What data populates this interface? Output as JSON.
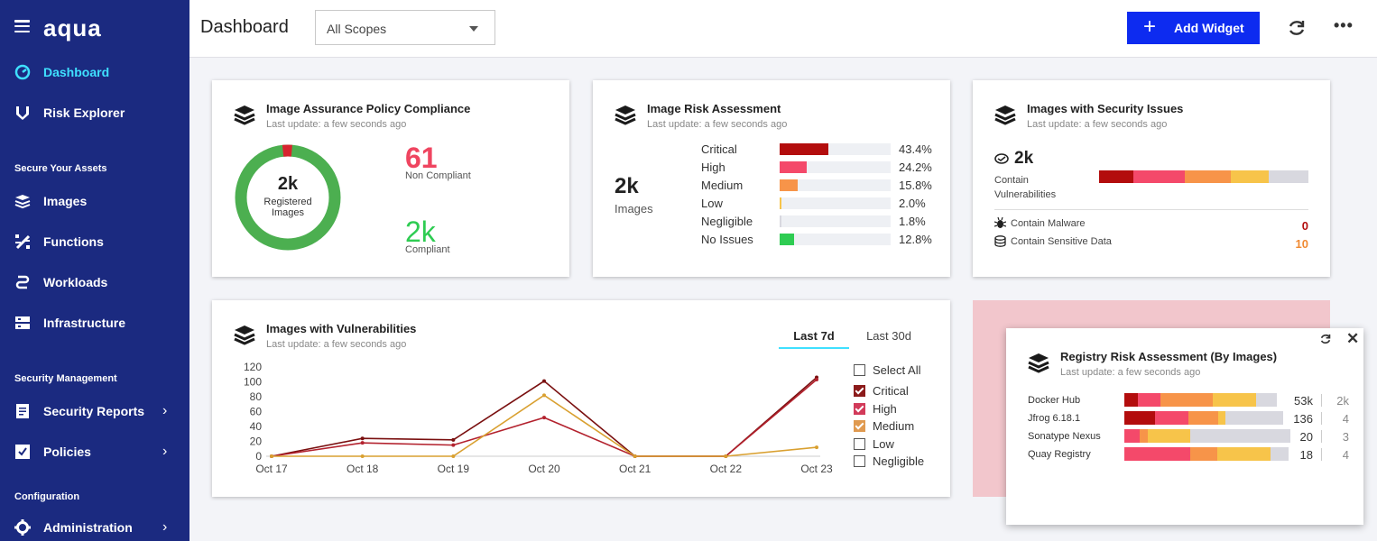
{
  "sidebar": {
    "logo": "aqua",
    "items": [
      {
        "label": "Dashboard",
        "icon": "gauge-icon",
        "active": true
      },
      {
        "label": "Risk Explorer",
        "icon": "risk-icon"
      },
      {
        "label": "Images",
        "icon": "stack-icon"
      },
      {
        "label": "Functions",
        "icon": "function-icon"
      },
      {
        "label": "Workloads",
        "icon": "workloads-icon"
      },
      {
        "label": "Infrastructure",
        "icon": "server-icon"
      },
      {
        "label": "Security Reports",
        "icon": "report-icon"
      },
      {
        "label": "Policies",
        "icon": "policy-icon"
      },
      {
        "label": "Administration",
        "icon": "gear-icon"
      }
    ],
    "sections": [
      "Secure Your Assets",
      "Security Management",
      "Configuration"
    ]
  },
  "header": {
    "title": "Dashboard",
    "scope_select": "All Scopes",
    "add_widget_label": "Add Widget"
  },
  "widgets": {
    "last_update": "Last update: a few seconds ago",
    "compliance": {
      "title": "Image Assurance Policy Compliance",
      "center_value": "2k",
      "center_label_1": "Registered",
      "center_label_2": "Images",
      "non_compliant_value": "61",
      "non_compliant_label": "Non Compliant",
      "compliant_value": "2k",
      "compliant_label": "Compliant",
      "non_compliant_fraction": 0.03
    },
    "risk": {
      "title": "Image Risk Assessment",
      "total_value": "2k",
      "total_label": "Images",
      "rows": [
        {
          "name": "Critical",
          "pct": "43.4%",
          "value": 43.4,
          "color": "#b30d0d"
        },
        {
          "name": "High",
          "pct": "24.2%",
          "value": 24.2,
          "color": "#f4496a"
        },
        {
          "name": "Medium",
          "pct": "15.8%",
          "value": 15.8,
          "color": "#f79449"
        },
        {
          "name": "Low",
          "pct": "2.0%",
          "value": 2.0,
          "color": "#f7c44a"
        },
        {
          "name": "Negligible",
          "pct": "1.8%",
          "value": 1.8,
          "color": "#d8d8df"
        },
        {
          "name": "No Issues",
          "pct": "12.8%",
          "value": 12.8,
          "color": "#2ecc52"
        }
      ]
    },
    "security_issues": {
      "title": "Images with Security Issues",
      "vuln_value": "2k",
      "vuln_label_1": "Contain",
      "vuln_label_2": "Vulnerabilities",
      "malware_label": "Contain Malware",
      "malware_value": "0",
      "sensitive_label": "Contain Sensitive Data",
      "sensitive_value": "10",
      "bar_segments": [
        {
          "color": "#b30d0d",
          "value": 38
        },
        {
          "color": "#f4496a",
          "value": 57
        },
        {
          "color": "#f79449",
          "value": 51
        },
        {
          "color": "#f7c44a",
          "value": 42
        },
        {
          "color": "#d8d8df",
          "value": 44
        }
      ]
    },
    "vulnerabilities": {
      "title": "Images with Vulnerabilities",
      "tabs": [
        "Last 7d",
        "Last 30d"
      ],
      "active_tab": "Last 7d",
      "legend": [
        {
          "label": "Select All",
          "checked": false,
          "color": "#555555"
        },
        {
          "label": "Critical",
          "checked": true,
          "color": "#8b1a1a"
        },
        {
          "label": "High",
          "checked": true,
          "color": "#d23a5a"
        },
        {
          "label": "Medium",
          "checked": true,
          "color": "#e09a50"
        },
        {
          "label": "Low",
          "checked": false,
          "color": "#555555"
        },
        {
          "label": "Negligible",
          "checked": false,
          "color": "#555555"
        }
      ]
    },
    "registry": {
      "title": "Registry Risk Assessment (By Images)",
      "rows": [
        {
          "name": "Docker Hub",
          "value": "53k",
          "count": "2k",
          "segments": [
            {
              "c": "#b30d0d",
              "v": 15
            },
            {
              "c": "#f4496a",
              "v": 25
            },
            {
              "c": "#f79449",
              "v": 58
            },
            {
              "c": "#f7c44a",
              "v": 48
            },
            {
              "c": "#d8d8df",
              "v": 23
            }
          ]
        },
        {
          "name": "Jfrog 6.18.1",
          "value": "136",
          "count": "4",
          "segments": [
            {
              "c": "#b30d0d",
              "v": 34
            },
            {
              "c": "#f4496a",
              "v": 37
            },
            {
              "c": "#f79449",
              "v": 33
            },
            {
              "c": "#f7c44a",
              "v": 8
            },
            {
              "c": "#d8d8df",
              "v": 64
            }
          ]
        },
        {
          "name": "Sonatype Nexus",
          "value": "20",
          "count": "3",
          "segments": [
            {
              "c": "#f4496a",
              "v": 17
            },
            {
              "c": "#f79449",
              "v": 9
            },
            {
              "c": "#f7c44a",
              "v": 47
            },
            {
              "c": "#d8d8df",
              "v": 111
            }
          ]
        },
        {
          "name": "Quay Registry",
          "value": "18",
          "count": "4",
          "segments": [
            {
              "c": "#f4496a",
              "v": 73
            },
            {
              "c": "#f79449",
              "v": 30
            },
            {
              "c": "#f7c44a",
              "v": 59
            },
            {
              "c": "#d8d8df",
              "v": 20
            }
          ]
        }
      ]
    }
  },
  "chart_data": {
    "type": "line",
    "x": [
      "Oct 17",
      "Oct 18",
      "Oct 19",
      "Oct 20",
      "Oct 21",
      "Oct 22",
      "Oct 23"
    ],
    "ylim": [
      0,
      120
    ],
    "yticks": [
      0,
      20,
      40,
      60,
      80,
      100,
      120
    ],
    "grid": false,
    "series": [
      {
        "name": "Critical",
        "color": "#7a1010",
        "values": [
          0,
          24,
          22,
          101,
          0,
          0,
          106
        ]
      },
      {
        "name": "High",
        "color": "#b3222e",
        "values": [
          0,
          18,
          15,
          52,
          0,
          0,
          103
        ]
      },
      {
        "name": "Medium",
        "color": "#d9a030",
        "values": [
          0,
          0,
          0,
          82,
          0,
          0,
          12
        ]
      }
    ]
  }
}
